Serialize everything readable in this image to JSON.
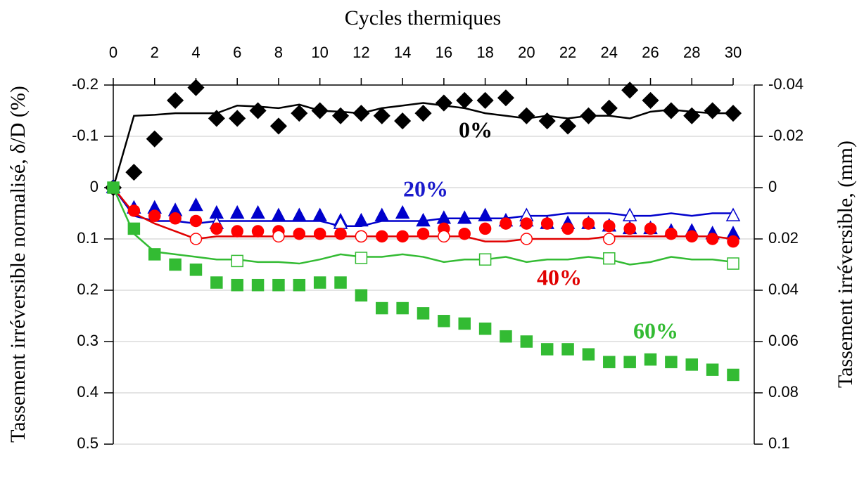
{
  "chart_data": {
    "type": "line",
    "xlabel": "Cycles thermiques",
    "ylabel": "Tassement irréversible normalisé, δ/D (%)",
    "y2label": "Tassement irréversible, (mm)",
    "x": [
      0,
      1,
      2,
      3,
      4,
      5,
      6,
      7,
      8,
      9,
      10,
      11,
      12,
      13,
      14,
      15,
      16,
      17,
      18,
      19,
      20,
      21,
      22,
      23,
      24,
      25,
      26,
      27,
      28,
      29,
      30
    ],
    "xlim": [
      0,
      30
    ],
    "xticks": [
      0,
      2,
      4,
      6,
      8,
      10,
      12,
      14,
      16,
      18,
      20,
      22,
      24,
      26,
      28,
      30
    ],
    "ylim": [
      -0.2,
      0.5
    ],
    "yticks": [
      -0.2,
      -0.1,
      0,
      0.1,
      0.2,
      0.3,
      0.4,
      0.5
    ],
    "y_inverted": true,
    "y2lim": [
      -0.04,
      0.1
    ],
    "y2ticks": [
      -0.04,
      -0.02,
      0,
      0.02,
      0.04,
      0.06,
      0.08,
      0.1
    ],
    "grid": true,
    "series": [
      {
        "color": "#000000",
        "line": true,
        "marker": "none",
        "values": [
          0,
          -0.14,
          -0.142,
          -0.145,
          -0.145,
          -0.145,
          -0.16,
          -0.158,
          -0.155,
          -0.162,
          -0.15,
          -0.148,
          -0.145,
          -0.155,
          -0.16,
          -0.165,
          -0.16,
          -0.155,
          -0.145,
          -0.14,
          -0.135,
          -0.14,
          -0.135,
          -0.14,
          -0.14,
          -0.135,
          -0.148,
          -0.152,
          -0.148,
          -0.145,
          -0.145
        ]
      },
      {
        "color": "#000000",
        "line": false,
        "marker": "diamond",
        "filled": true,
        "values": [
          0,
          -0.03,
          -0.095,
          -0.17,
          -0.195,
          -0.135,
          -0.135,
          -0.15,
          -0.12,
          -0.145,
          -0.15,
          -0.14,
          -0.145,
          -0.14,
          -0.13,
          -0.145,
          -0.165,
          -0.17,
          -0.17,
          -0.175,
          -0.14,
          -0.13,
          -0.12,
          -0.14,
          -0.155,
          -0.19,
          -0.17,
          -0.15,
          -0.14,
          -0.15,
          -0.145
        ]
      },
      {
        "color": "#0000cc",
        "line": true,
        "marker": "none",
        "values": [
          0,
          0.055,
          0.065,
          0.065,
          0.07,
          0.065,
          0.065,
          0.065,
          0.065,
          0.065,
          0.065,
          0.075,
          0.075,
          0.065,
          0.065,
          0.065,
          0.06,
          0.06,
          0.06,
          0.06,
          0.055,
          0.055,
          0.05,
          0.05,
          0.05,
          0.055,
          0.055,
          0.05,
          0.055,
          0.05,
          0.05
        ]
      },
      {
        "color": "#0000cc",
        "line": false,
        "marker": "triangle",
        "filled": true,
        "values": [
          0,
          0.04,
          0.04,
          0.045,
          0.035,
          0.05,
          0.05,
          0.05,
          0.055,
          0.055,
          0.055,
          0.065,
          0.065,
          0.055,
          0.05,
          0.065,
          0.06,
          0.06,
          0.055,
          0.065,
          0.065,
          0.07,
          0.07,
          0.07,
          0.075,
          0.08,
          0.08,
          0.085,
          0.085,
          0.09,
          0.09
        ]
      },
      {
        "color": "#0000cc",
        "line": false,
        "marker": "triangle",
        "filled": false,
        "values": [
          0,
          null,
          null,
          null,
          null,
          0.07,
          null,
          null,
          null,
          null,
          null,
          0.07,
          null,
          null,
          null,
          null,
          null,
          null,
          null,
          null,
          0.055,
          null,
          null,
          null,
          null,
          0.055,
          null,
          null,
          null,
          null,
          0.055
        ]
      },
      {
        "color": "#e00000",
        "line": true,
        "marker": "none",
        "values": [
          0,
          0.05,
          0.07,
          0.085,
          0.1,
          0.095,
          0.095,
          0.095,
          0.095,
          0.095,
          0.095,
          0.095,
          0.095,
          0.095,
          0.095,
          0.095,
          0.095,
          0.095,
          0.105,
          0.105,
          0.1,
          0.1,
          0.1,
          0.1,
          0.095,
          0.095,
          0.095,
          0.095,
          0.095,
          0.095,
          0.1
        ]
      },
      {
        "color": "#ff0000",
        "line": false,
        "marker": "circle",
        "filled": true,
        "values": [
          0,
          0.045,
          0.055,
          0.06,
          0.065,
          0.08,
          0.085,
          0.085,
          0.085,
          0.09,
          0.09,
          0.09,
          0.095,
          0.095,
          0.095,
          0.09,
          0.08,
          0.09,
          0.08,
          0.07,
          0.07,
          0.07,
          0.08,
          0.07,
          0.075,
          0.08,
          0.08,
          0.09,
          0.095,
          0.1,
          0.105
        ]
      },
      {
        "color": "#ff0000",
        "line": false,
        "marker": "circle",
        "filled": false,
        "values": [
          null,
          null,
          null,
          null,
          0.1,
          null,
          null,
          null,
          0.095,
          null,
          null,
          null,
          0.095,
          null,
          null,
          null,
          0.095,
          null,
          null,
          null,
          0.1,
          null,
          null,
          null,
          0.1,
          null,
          null,
          null,
          null,
          null,
          null
        ]
      },
      {
        "color": "#33bb33",
        "line": true,
        "marker": "none",
        "values": [
          0,
          0.09,
          0.125,
          0.13,
          0.135,
          0.14,
          0.14,
          0.145,
          0.145,
          0.148,
          0.14,
          0.13,
          0.135,
          0.135,
          0.13,
          0.135,
          0.145,
          0.14,
          0.14,
          0.135,
          0.145,
          0.14,
          0.14,
          0.135,
          0.14,
          0.15,
          0.145,
          0.135,
          0.14,
          0.14,
          0.145
        ]
      },
      {
        "color": "#33bb33",
        "line": false,
        "marker": "square",
        "filled": true,
        "values": [
          0,
          0.08,
          0.13,
          0.15,
          0.16,
          0.185,
          0.19,
          0.19,
          0.19,
          0.19,
          0.185,
          0.185,
          0.21,
          0.235,
          0.235,
          0.245,
          0.26,
          0.265,
          0.275,
          0.29,
          0.3,
          0.315,
          0.315,
          0.325,
          0.34,
          0.34,
          0.335,
          0.34,
          0.345,
          0.355,
          0.365
        ]
      },
      {
        "color": "#33bb33",
        "line": false,
        "marker": "square",
        "filled": false,
        "values": [
          null,
          null,
          null,
          null,
          null,
          null,
          0.143,
          null,
          null,
          null,
          null,
          null,
          0.137,
          null,
          null,
          null,
          null,
          null,
          0.14,
          null,
          null,
          null,
          null,
          null,
          0.138,
          null,
          null,
          null,
          null,
          null,
          0.148
        ]
      }
    ],
    "annotations": [
      {
        "text": "0%",
        "color": "#000000"
      },
      {
        "text": "20%",
        "color": "#1a1acc"
      },
      {
        "text": "40%",
        "color": "#e00000"
      },
      {
        "text": "60%",
        "color": "#33bb33"
      }
    ]
  }
}
